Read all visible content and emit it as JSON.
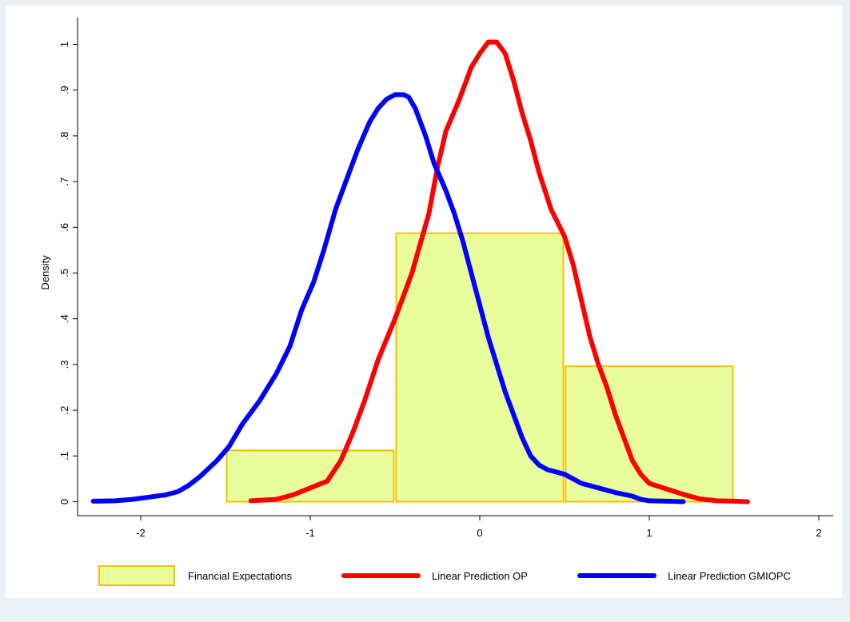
{
  "chart_data": {
    "type": "histogram+line",
    "title": "",
    "xlabel": "",
    "ylabel": "Density",
    "xlim": [
      -2.35,
      2.35
    ],
    "ylim": [
      0,
      1.05
    ],
    "x_ticks": [
      -2,
      -1,
      0,
      1,
      2
    ],
    "x_tick_labels": [
      "-2",
      "-1",
      "0",
      "1",
      "2"
    ],
    "y_ticks": [
      0,
      0.1,
      0.2,
      0.3,
      0.4,
      0.5,
      0.6,
      0.7,
      0.8,
      0.9,
      1
    ],
    "y_tick_labels": [
      "0",
      ".1",
      ".2",
      ".3",
      ".4",
      ".5",
      ".6",
      ".7",
      ".8",
      ".9",
      "1"
    ],
    "grid": false,
    "legend_position": "bottom",
    "histogram": {
      "name": "Financial Expectations",
      "fill": "#e8fc9c",
      "stroke": "#f2c200",
      "bins": [
        {
          "x0": -1.5,
          "x1": -0.5,
          "value": 0.112
        },
        {
          "x0": -0.5,
          "x1": 0.5,
          "value": 0.587
        },
        {
          "x0": 0.5,
          "x1": 1.5,
          "value": 0.296
        }
      ]
    },
    "series": [
      {
        "name": "Linear Prediction OP",
        "color": "#ff0000",
        "points": [
          [
            -1.35,
            0.002
          ],
          [
            -1.2,
            0.005
          ],
          [
            -1.1,
            0.015
          ],
          [
            -1.0,
            0.03
          ],
          [
            -0.9,
            0.045
          ],
          [
            -0.82,
            0.09
          ],
          [
            -0.75,
            0.15
          ],
          [
            -0.68,
            0.22
          ],
          [
            -0.6,
            0.31
          ],
          [
            -0.5,
            0.4
          ],
          [
            -0.4,
            0.5
          ],
          [
            -0.3,
            0.63
          ],
          [
            -0.25,
            0.73
          ],
          [
            -0.2,
            0.81
          ],
          [
            -0.12,
            0.88
          ],
          [
            -0.05,
            0.95
          ],
          [
            0.0,
            0.98
          ],
          [
            0.05,
            1.005
          ],
          [
            0.1,
            1.005
          ],
          [
            0.15,
            0.98
          ],
          [
            0.2,
            0.92
          ],
          [
            0.25,
            0.85
          ],
          [
            0.3,
            0.79
          ],
          [
            0.35,
            0.72
          ],
          [
            0.42,
            0.64
          ],
          [
            0.5,
            0.58
          ],
          [
            0.55,
            0.52
          ],
          [
            0.6,
            0.44
          ],
          [
            0.65,
            0.36
          ],
          [
            0.7,
            0.3
          ],
          [
            0.75,
            0.25
          ],
          [
            0.8,
            0.19
          ],
          [
            0.85,
            0.14
          ],
          [
            0.9,
            0.09
          ],
          [
            0.95,
            0.06
          ],
          [
            1.0,
            0.04
          ],
          [
            1.1,
            0.028
          ],
          [
            1.2,
            0.016
          ],
          [
            1.3,
            0.006
          ],
          [
            1.4,
            0.002
          ],
          [
            1.5,
            0.001
          ],
          [
            1.58,
            0.0
          ]
        ]
      },
      {
        "name": "Linear Prediction GMIOPC",
        "color": "#0000ff",
        "points": [
          [
            -2.28,
            0.001
          ],
          [
            -2.15,
            0.002
          ],
          [
            -2.05,
            0.005
          ],
          [
            -1.95,
            0.01
          ],
          [
            -1.85,
            0.015
          ],
          [
            -1.78,
            0.022
          ],
          [
            -1.72,
            0.035
          ],
          [
            -1.65,
            0.055
          ],
          [
            -1.55,
            0.09
          ],
          [
            -1.48,
            0.12
          ],
          [
            -1.4,
            0.17
          ],
          [
            -1.3,
            0.22
          ],
          [
            -1.2,
            0.28
          ],
          [
            -1.12,
            0.34
          ],
          [
            -1.05,
            0.42
          ],
          [
            -0.98,
            0.48
          ],
          [
            -0.92,
            0.55
          ],
          [
            -0.85,
            0.64
          ],
          [
            -0.78,
            0.71
          ],
          [
            -0.72,
            0.77
          ],
          [
            -0.65,
            0.83
          ],
          [
            -0.6,
            0.86
          ],
          [
            -0.55,
            0.88
          ],
          [
            -0.5,
            0.89
          ],
          [
            -0.45,
            0.89
          ],
          [
            -0.42,
            0.885
          ],
          [
            -0.38,
            0.86
          ],
          [
            -0.32,
            0.8
          ],
          [
            -0.27,
            0.74
          ],
          [
            -0.2,
            0.68
          ],
          [
            -0.15,
            0.63
          ],
          [
            -0.1,
            0.57
          ],
          [
            -0.05,
            0.5
          ],
          [
            0.0,
            0.43
          ],
          [
            0.05,
            0.36
          ],
          [
            0.1,
            0.3
          ],
          [
            0.15,
            0.24
          ],
          [
            0.2,
            0.19
          ],
          [
            0.25,
            0.14
          ],
          [
            0.3,
            0.1
          ],
          [
            0.35,
            0.08
          ],
          [
            0.4,
            0.07
          ],
          [
            0.5,
            0.06
          ],
          [
            0.6,
            0.04
          ],
          [
            0.7,
            0.03
          ],
          [
            0.8,
            0.02
          ],
          [
            0.9,
            0.012
          ],
          [
            0.95,
            0.005
          ],
          [
            1.0,
            0.002
          ],
          [
            1.1,
            0.001
          ],
          [
            1.2,
            0.0
          ]
        ]
      }
    ]
  }
}
